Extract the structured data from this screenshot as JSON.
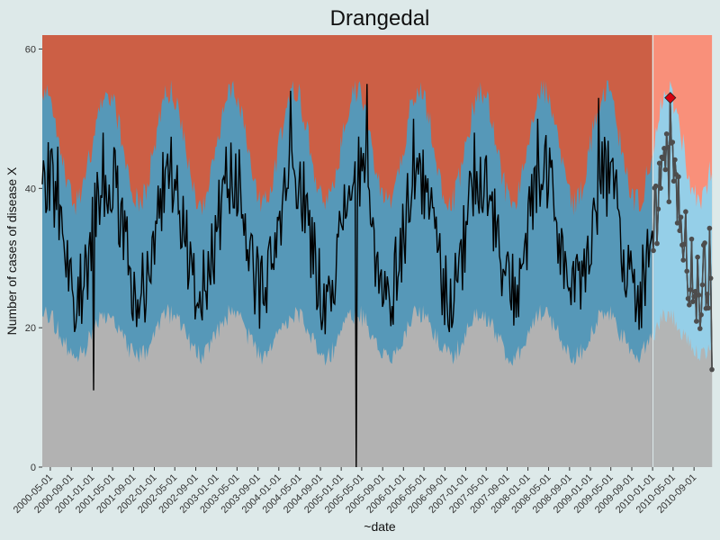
{
  "chart_data": {
    "type": "area",
    "title": "Drangedal",
    "xlabel": "~date",
    "ylabel": "Number of cases of disease X",
    "x_range": [
      "2000-03-15",
      "2010-12-20"
    ],
    "ylim": [
      0,
      62
    ],
    "y_ticks": [
      0,
      20,
      40,
      60
    ],
    "x_ticks": [
      "2000-05-01",
      "2000-09-01",
      "2001-01-01",
      "2001-05-01",
      "2001-09-01",
      "2002-01-01",
      "2002-05-01",
      "2002-09-01",
      "2003-01-01",
      "2003-05-01",
      "2003-09-01",
      "2004-01-01",
      "2004-05-01",
      "2004-09-01",
      "2005-01-01",
      "2005-05-01",
      "2005-09-01",
      "2006-01-01",
      "2006-05-01",
      "2006-09-01",
      "2007-01-01",
      "2007-05-01",
      "2007-09-01",
      "2008-01-01",
      "2008-05-01",
      "2008-09-01",
      "2009-01-01",
      "2009-05-01",
      "2009-09-01",
      "2010-01-01",
      "2010-05-01",
      "2010-09-01"
    ],
    "grid": false,
    "projection_start": "2010-01-01",
    "bands": {
      "baseline_color": "#b2b2b2",
      "expected_color": "#5698b8",
      "upper_color": "#cc5f45",
      "projection_baseline_color": "#b3b5b5",
      "projection_expected_color": "#95cfe8",
      "projection_upper_color": "#f9907a"
    },
    "seasonal_model": {
      "baseline_low": 16,
      "baseline_high": 22,
      "expected_low": 25,
      "expected_high": 42,
      "threshold_low": 38,
      "threshold_high": 54,
      "peak_month": 3
    },
    "peaks": [
      {
        "date": "2000-06-15",
        "value": 46
      },
      {
        "date": "2001-03-10",
        "value": 48
      },
      {
        "date": "2002-03-20",
        "value": 45
      },
      {
        "date": "2003-03-01",
        "value": 46
      },
      {
        "date": "2004-03-10",
        "value": 54
      },
      {
        "date": "2005-06-01",
        "value": 55
      },
      {
        "date": "2006-03-01",
        "value": 50
      },
      {
        "date": "2007-02-20",
        "value": 48
      },
      {
        "date": "2008-03-01",
        "value": 50
      },
      {
        "date": "2009-02-15",
        "value": 53
      },
      {
        "date": "2010-04-15",
        "value": 53
      }
    ],
    "dips": [
      {
        "date": "2001-01-10",
        "value": 11
      },
      {
        "date": "2005-04-01",
        "value": 0
      }
    ],
    "end_value": 14,
    "alert": {
      "date": "2010-04-15",
      "value": 53,
      "color": "#d6000f"
    },
    "series": [
      {
        "kind": "observed",
        "color": "#000000"
      },
      {
        "kind": "projection",
        "color": "#4d4d4d",
        "marker": "circle"
      }
    ]
  }
}
